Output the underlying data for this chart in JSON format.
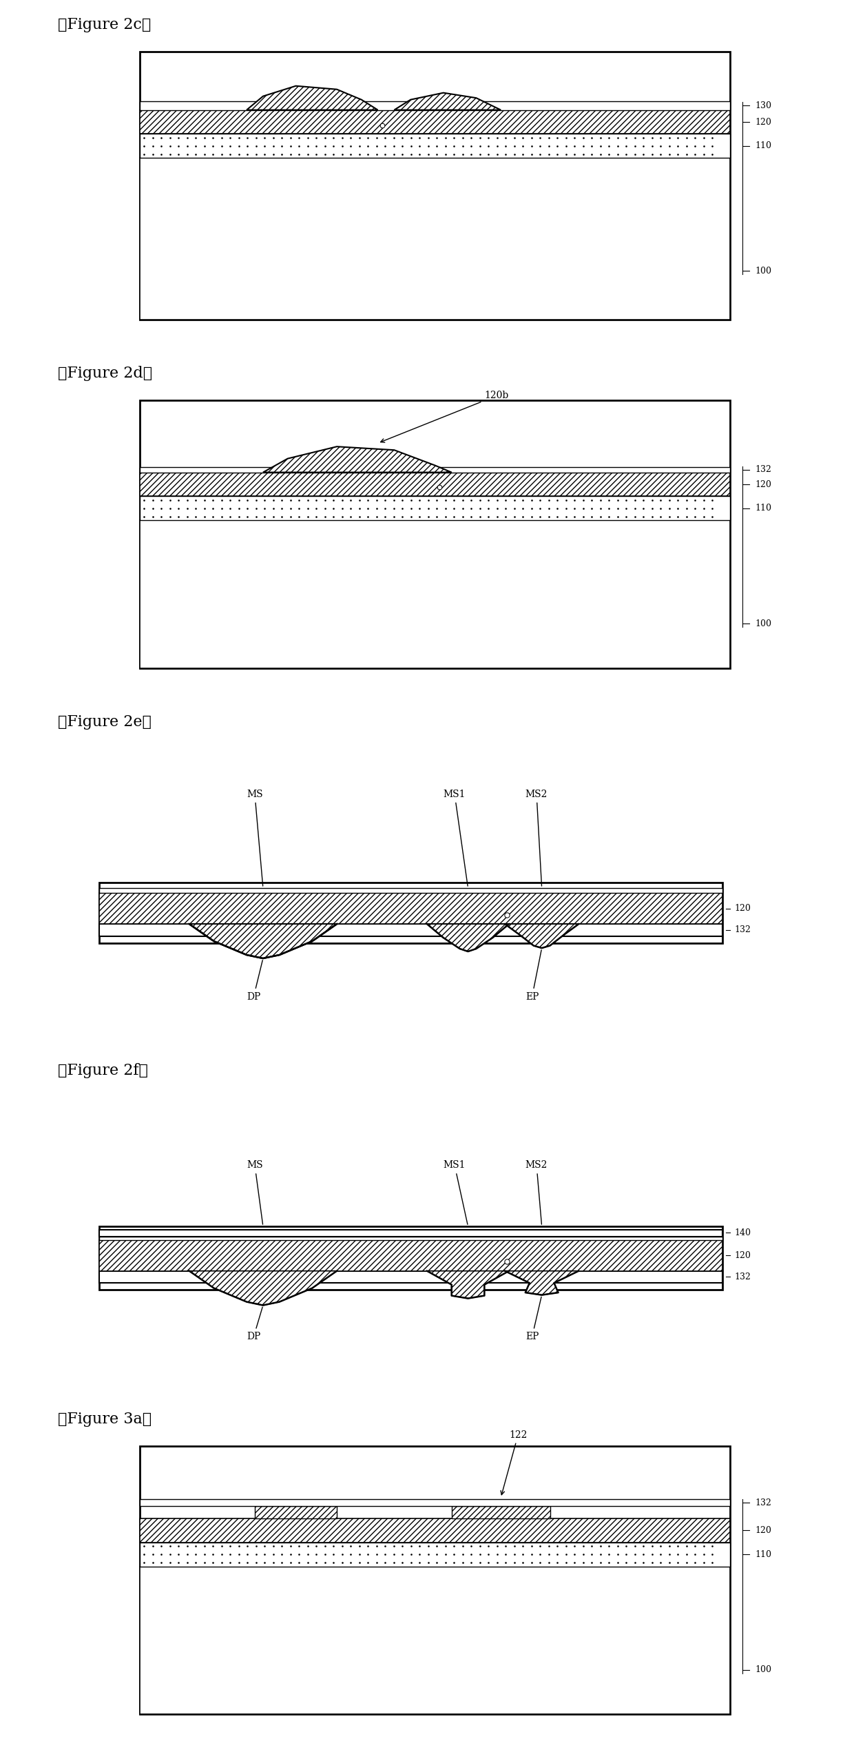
{
  "fig_width": 12.4,
  "fig_height": 25.43,
  "panels": [
    {
      "title": "【Figure 2c】",
      "type": "boxed_4layer",
      "labels_right": [
        "130",
        "120",
        "110",
        "100"
      ],
      "bump_up": true,
      "bump_count": 2
    },
    {
      "title": "【Figure 2d】",
      "type": "boxed_4layer",
      "labels_right": [
        "132",
        "120",
        "110",
        "100"
      ],
      "bump_up": true,
      "bump_count": 2,
      "label_120b": "120b"
    },
    {
      "title": "【Figure 2e】",
      "type": "thin_2layer",
      "labels_right": [
        "120",
        "132"
      ],
      "bump_down": true,
      "labels_ms": [
        "MS",
        "MS1",
        "MS2"
      ],
      "labels_bottom": [
        "DP",
        "EP"
      ]
    },
    {
      "title": "【Figure 2f】",
      "type": "thin_3layer",
      "labels_right": [
        "140",
        "120",
        "132"
      ],
      "bump_down": true,
      "labels_ms": [
        "MS",
        "MS1",
        "MS2"
      ],
      "labels_bottom": [
        "DP",
        "EP"
      ]
    },
    {
      "title": "【Figure 3a】",
      "type": "boxed_4layer_nanostructures",
      "labels_right": [
        "132",
        "120",
        "110",
        "100"
      ],
      "label_122": "122"
    }
  ]
}
